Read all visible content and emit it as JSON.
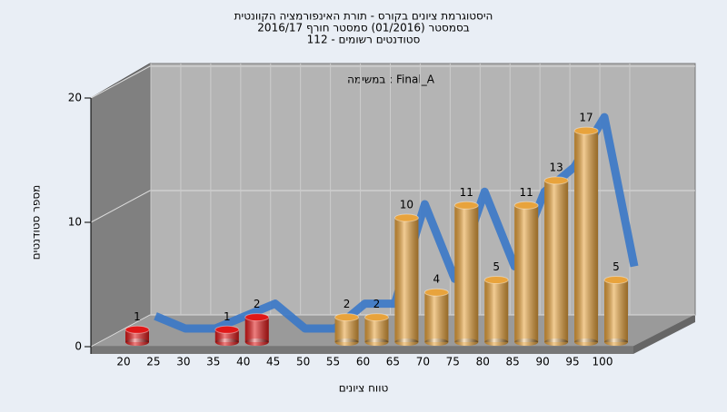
{
  "chart_data": {
    "type": "bar3d",
    "title": [
      "היסטוגרמת ציונים בקורס - תורת האינפורמציה הקוונטית",
      "בסמסטר (01/2016) סמסטר חורף 2016/17",
      "סטודנטים רשומים - 112"
    ],
    "annotation": "במשימה : Final_A",
    "y_label": "מספר סטודנטים",
    "x_label": "טווח ציונים",
    "categories": [
      "20",
      "25",
      "30",
      "35",
      "40",
      "45",
      "50",
      "55",
      "60",
      "65",
      "70",
      "75",
      "80",
      "85",
      "90",
      "95",
      "100"
    ],
    "values": [
      1,
      0,
      0,
      1,
      2,
      0,
      0,
      2,
      2,
      10,
      4,
      11,
      5,
      11,
      13,
      17,
      5
    ],
    "colors": [
      "#e01818",
      "#e01818",
      "#e01818",
      "#e01818",
      "#e01818",
      "#e01818",
      "#e01818",
      "#e8a33c",
      "#e8a33c",
      "#e8a33c",
      "#e8a33c",
      "#e8a33c",
      "#e8a33c",
      "#e8a33c",
      "#e8a33c",
      "#e8a33c",
      "#e8a33c"
    ],
    "line_color": "#3a78c8",
    "ylim": [
      0,
      20
    ],
    "yticks": [
      0,
      10,
      20
    ],
    "grid": true
  }
}
